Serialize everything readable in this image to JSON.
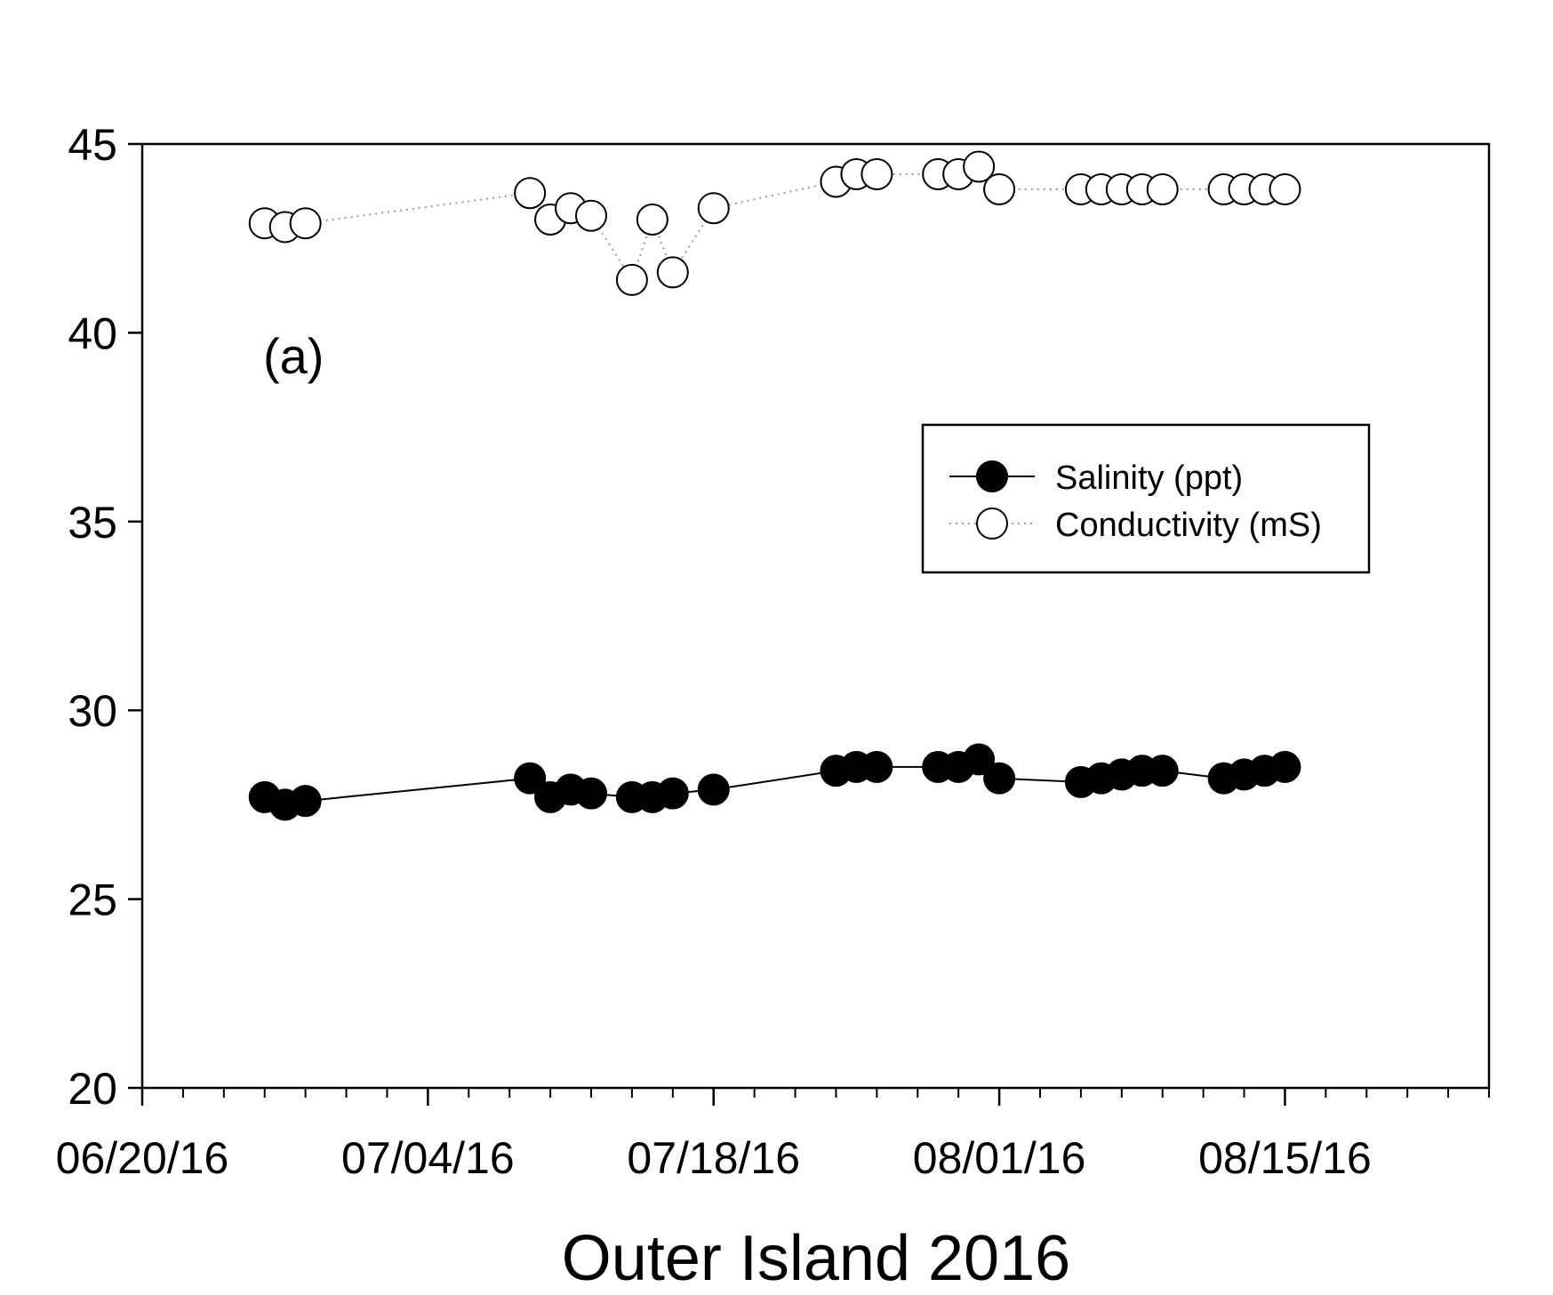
{
  "chart_data": {
    "type": "line",
    "panel_label": "(a)",
    "xlabel": "Outer Island 2016",
    "ylabel": "",
    "ylim": [
      20,
      45
    ],
    "yticks": [
      20,
      25,
      30,
      35,
      40,
      45
    ],
    "xlim": [
      "2016-06-20",
      "2016-08-25"
    ],
    "xticks": [
      "06/20/16",
      "07/04/16",
      "07/18/16",
      "08/01/16",
      "08/15/16"
    ],
    "grid": false,
    "legend_position": "upper-right",
    "series": [
      {
        "name": "Salinity (ppt)",
        "marker": "filled-circle",
        "line": "solid",
        "color": "#000000",
        "x": [
          "2016-06-26",
          "2016-06-27",
          "2016-06-28",
          "2016-07-09",
          "2016-07-10",
          "2016-07-11",
          "2016-07-12",
          "2016-07-14",
          "2016-07-15",
          "2016-07-16",
          "2016-07-18",
          "2016-07-24",
          "2016-07-25",
          "2016-07-26",
          "2016-07-29",
          "2016-07-30",
          "2016-07-31",
          "2016-08-01",
          "2016-08-05",
          "2016-08-06",
          "2016-08-07",
          "2016-08-08",
          "2016-08-09",
          "2016-08-12",
          "2016-08-13",
          "2016-08-14",
          "2016-08-15"
        ],
        "values": [
          27.7,
          27.5,
          27.6,
          28.2,
          27.7,
          27.9,
          27.8,
          27.7,
          27.7,
          27.8,
          27.9,
          28.4,
          28.5,
          28.5,
          28.5,
          28.5,
          28.7,
          28.2,
          28.1,
          28.2,
          28.3,
          28.4,
          28.4,
          28.2,
          28.3,
          28.4,
          28.5
        ]
      },
      {
        "name": "Conductivity (mS)",
        "marker": "open-circle",
        "line": "dotted",
        "color": "#000000",
        "x": [
          "2016-06-26",
          "2016-06-27",
          "2016-06-28",
          "2016-07-09",
          "2016-07-10",
          "2016-07-11",
          "2016-07-12",
          "2016-07-14",
          "2016-07-15",
          "2016-07-16",
          "2016-07-18",
          "2016-07-24",
          "2016-07-25",
          "2016-07-26",
          "2016-07-29",
          "2016-07-30",
          "2016-07-31",
          "2016-08-01",
          "2016-08-05",
          "2016-08-06",
          "2016-08-07",
          "2016-08-08",
          "2016-08-09",
          "2016-08-12",
          "2016-08-13",
          "2016-08-14",
          "2016-08-15"
        ],
        "values": [
          42.9,
          42.8,
          42.9,
          43.7,
          43.0,
          43.3,
          43.1,
          41.4,
          43.0,
          41.6,
          43.3,
          44.0,
          44.2,
          44.2,
          44.2,
          44.2,
          44.4,
          43.8,
          43.8,
          43.8,
          43.8,
          43.8,
          43.8,
          43.8,
          43.8,
          43.8,
          43.8
        ]
      }
    ]
  }
}
